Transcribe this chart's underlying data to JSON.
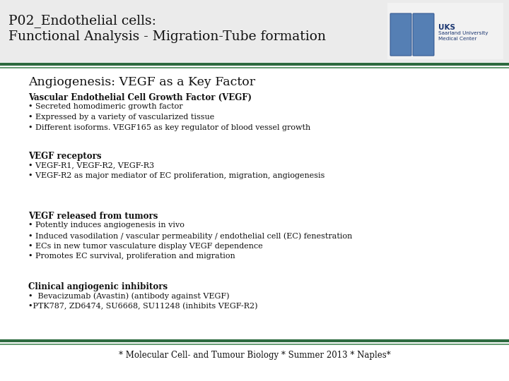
{
  "bg_color": "#ffffff",
  "header_bg": "#ebebeb",
  "title_line1": "P02_Endothelial cells:",
  "title_line2": "Functional Analysis - Migration-Tube formation",
  "subtitle": "Angiogenesis: VEGF as a Key Factor",
  "green_color1": "#2d6a3f",
  "green_color2": "#4a8a5a",
  "footer_text": "* Molecular Cell- and Tumour Biology * Summer 2013 * Naples*",
  "sections": [
    {
      "header": "Vascular Endothelial Cell Growth Factor (VEGF)",
      "bullets": [
        "• Secreted homodimeric growth factor",
        "• Expressed by a variety of vascularized tissue",
        "• Different isoforms. VEGF165 as key regulator of blood vessel growth"
      ]
    },
    {
      "header": "VEGF receptors",
      "bullets": [
        "• VEGF-R1, VEGF-R2, VEGF-R3",
        "• VEGF-R2 as major mediator of EC proliferation, migration, angiogenesis"
      ]
    },
    {
      "header": "VEGF released from tumors",
      "bullets": [
        "• Potently induces angiogenesis in vivo",
        "• Induced vasodilation / vascular permeability / endothelial cell (EC) fenestration",
        "• ECs in new tumor vasculature display VEGF dependence",
        "• Promotes EC survival, proliferation and migration"
      ]
    },
    {
      "header": "Clinical angiogenic inhibitors",
      "bullets": [
        "•  Bevacizumab (Avastin) (antibody against VEGF)",
        "•PTK787, ZD6474, SU6668, SU11248 (inhibits VEGF-R2)"
      ]
    }
  ]
}
